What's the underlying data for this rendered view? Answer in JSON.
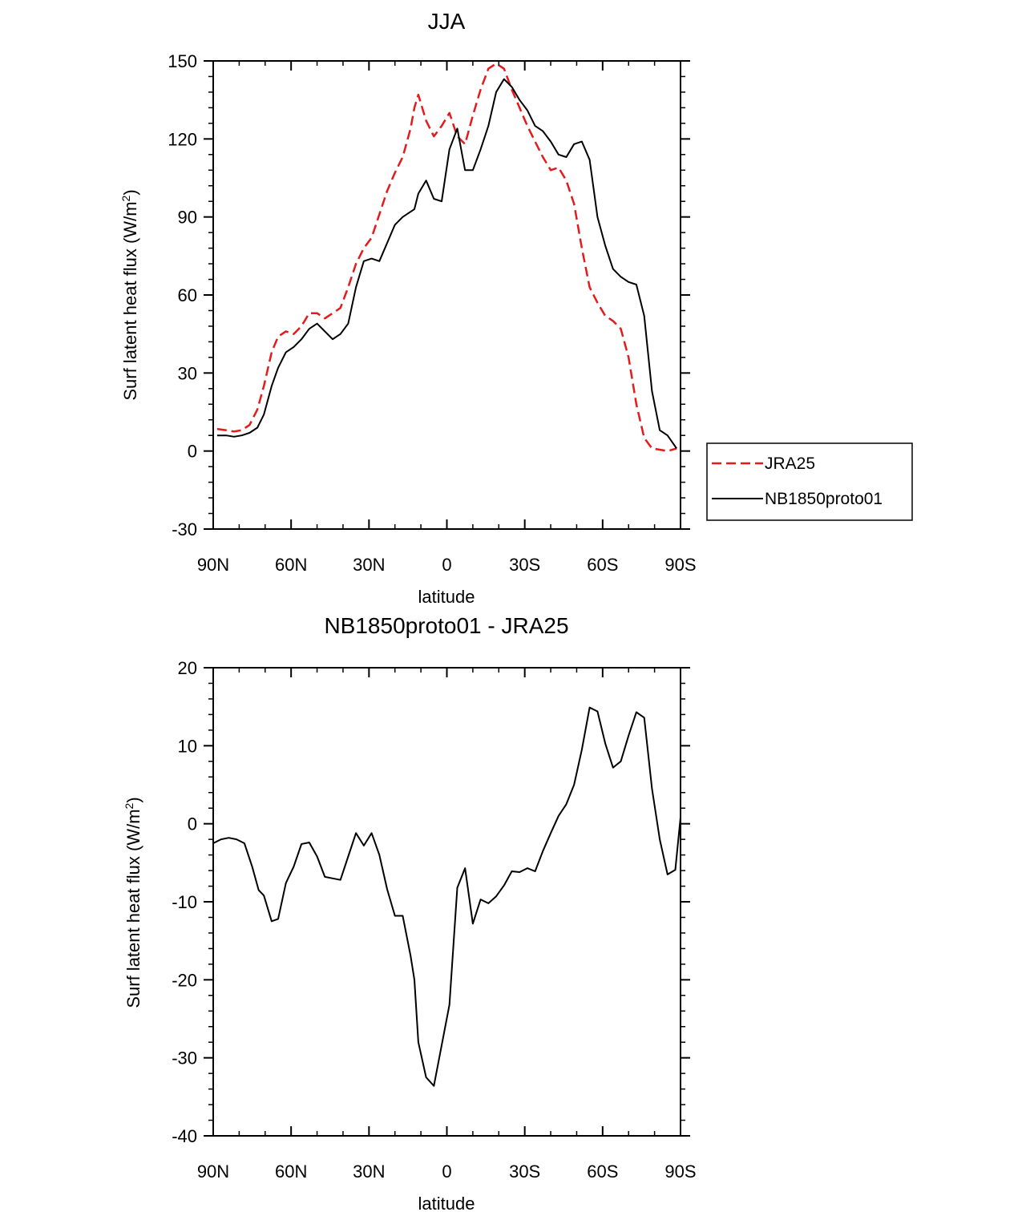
{
  "chart_data": [
    {
      "type": "line",
      "title": "JJA",
      "xlabel": "latitude",
      "ylabel": "Surf latent heat flux (W/m",
      "ylabel_sup": "2",
      "ylabel_close": ")",
      "xlim": [
        90,
        -90
      ],
      "ylim": [
        -30,
        150
      ],
      "x_ticks": [
        {
          "value": 90,
          "label": "90N"
        },
        {
          "value": 60,
          "label": "60N"
        },
        {
          "value": 30,
          "label": "30N"
        },
        {
          "value": 0,
          "label": "0"
        },
        {
          "value": -30,
          "label": "30S"
        },
        {
          "value": -60,
          "label": "60S"
        },
        {
          "value": -90,
          "label": "90S"
        }
      ],
      "y_ticks": [
        -30,
        0,
        30,
        60,
        90,
        120,
        150
      ],
      "legend": {
        "position": "right",
        "entries": [
          "JRA25",
          "NB1850proto01"
        ]
      },
      "series": [
        {
          "name": "JRA25",
          "color": "#e41a1c",
          "dash": "dashed",
          "x": [
            88.5,
            85,
            82,
            79,
            76,
            73,
            70.5,
            67.5,
            65,
            62,
            59,
            56,
            53,
            50,
            47,
            44,
            41,
            38,
            35,
            32,
            29,
            26,
            23,
            20,
            17,
            14,
            12.5,
            11,
            8,
            5,
            2,
            -1,
            -4,
            -7,
            -10,
            -13,
            -16,
            -19,
            -22,
            -25,
            -28,
            -31,
            -34,
            -37,
            -40,
            -43,
            -46,
            -49,
            -52,
            -55,
            -58,
            -61,
            -64,
            -67,
            -70,
            -73,
            -76,
            -79,
            -82,
            -85,
            -88.5
          ],
          "values": [
            8.5,
            8,
            7.5,
            8,
            10,
            16,
            25,
            38,
            44,
            46,
            45,
            48,
            53,
            53,
            51,
            53,
            55,
            63,
            72,
            78,
            82,
            91,
            100,
            107,
            113,
            124,
            132,
            137,
            127,
            121,
            125,
            130,
            121,
            118,
            129,
            139,
            147,
            149,
            147,
            139,
            132,
            125,
            119,
            113,
            108,
            109,
            104,
            95,
            78,
            63,
            57,
            52,
            50,
            47,
            36,
            18,
            5,
            1,
            0.5,
            0,
            1
          ]
        },
        {
          "name": "NB1850proto01",
          "color": "#000000",
          "dash": "solid",
          "x": [
            88.5,
            85,
            82,
            79,
            76,
            73,
            70.5,
            67.5,
            65,
            62,
            59,
            56,
            53,
            50,
            47,
            44,
            41,
            38,
            35,
            32,
            29,
            26,
            23,
            20,
            17,
            14,
            12.5,
            11,
            8,
            5,
            2,
            -1,
            -4,
            -7,
            -10,
            -13,
            -16,
            -19,
            -22,
            -25,
            -28,
            -31,
            -34,
            -37,
            -40,
            -43,
            -46,
            -49,
            -52,
            -55,
            -58,
            -61,
            -64,
            -67,
            -70,
            -73,
            -76,
            -79,
            -82,
            -85,
            -88.5
          ],
          "values": [
            6,
            6,
            5.5,
            6,
            7,
            9,
            14,
            25,
            32,
            38,
            40,
            43,
            47,
            49,
            46,
            43,
            45,
            49,
            63,
            73,
            74,
            73,
            80,
            87,
            90,
            92,
            93,
            99,
            104,
            97,
            96,
            116,
            124,
            108,
            108,
            116,
            125,
            138,
            143,
            140,
            135,
            131,
            125,
            123,
            119,
            114,
            113,
            118,
            119,
            112,
            90,
            79,
            70,
            67,
            65,
            64,
            52,
            23,
            8,
            6,
            1
          ]
        }
      ]
    },
    {
      "type": "line",
      "title": "NB1850proto01 - JRA25",
      "xlabel": "latitude",
      "ylabel": "Surf latent heat flux (W/m",
      "ylabel_sup": "2",
      "ylabel_close": ")",
      "xlim": [
        90,
        -90
      ],
      "ylim": [
        -40,
        20
      ],
      "x_ticks": [
        {
          "value": 90,
          "label": "90N"
        },
        {
          "value": 60,
          "label": "60N"
        },
        {
          "value": 30,
          "label": "30N"
        },
        {
          "value": 0,
          "label": "0"
        },
        {
          "value": -30,
          "label": "30S"
        },
        {
          "value": -60,
          "label": "60S"
        },
        {
          "value": -90,
          "label": "90S"
        }
      ],
      "y_ticks": [
        -40,
        -30,
        -20,
        -10,
        0,
        10,
        20
      ],
      "series": [
        {
          "name": "NB1850proto01 - JRA25",
          "color": "#000000",
          "dash": "solid",
          "x": [
            90,
            87,
            84,
            81,
            78,
            75,
            72.5,
            70.5,
            67.5,
            65,
            62,
            59,
            56,
            53,
            50,
            47,
            44,
            41,
            38,
            35,
            32,
            29,
            26,
            23,
            20,
            17,
            14,
            12.5,
            11,
            8,
            5,
            2,
            -1,
            -4,
            -7,
            -10,
            -13,
            -16,
            -19,
            -22,
            -25,
            -28,
            -31,
            -34,
            -37,
            -40,
            -43,
            -46,
            -49,
            -52,
            -55,
            -58,
            -61,
            -64,
            -67,
            -70,
            -73,
            -76,
            -79,
            -82,
            -85,
            -88,
            -90
          ],
          "values": [
            -2.5,
            -2,
            -1.8,
            -2,
            -2.5,
            -5.5,
            -8.5,
            -9.2,
            -12.5,
            -12.2,
            -7.6,
            -5.5,
            -2.6,
            -2.4,
            -4.2,
            -6.8,
            -7,
            -7.2,
            -4.2,
            -1.2,
            -2.8,
            -1.2,
            -4,
            -8.4,
            -11.8,
            -11.8,
            -16.9,
            -20,
            -28,
            -32.5,
            -33.6,
            -28.4,
            -23.2,
            -8.2,
            -5.7,
            -12.8,
            -9.7,
            -10.2,
            -9.3,
            -7.9,
            -6.1,
            -6.2,
            -5.7,
            -6.1,
            -3.5,
            -1.2,
            1,
            2.5,
            5,
            9.5,
            14.9,
            14.4,
            10.3,
            7.2,
            8,
            11.3,
            14.3,
            13.6,
            4.5,
            -2,
            -6.5,
            -5.9,
            0.8
          ]
        }
      ]
    }
  ]
}
